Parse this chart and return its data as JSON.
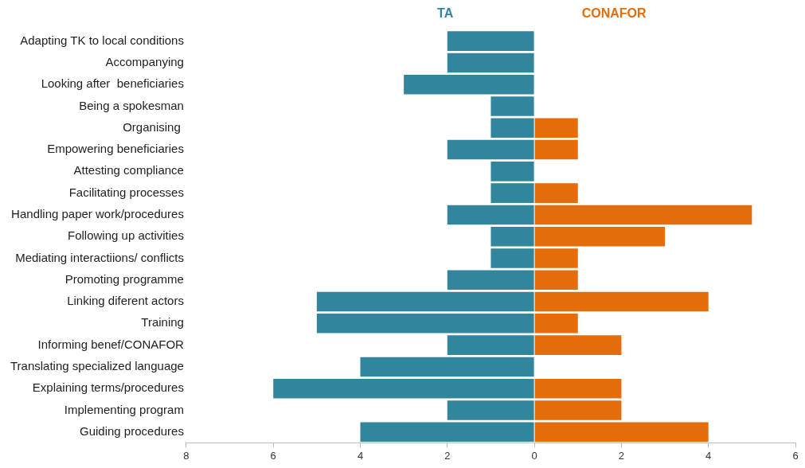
{
  "chart_data": {
    "type": "bar",
    "orientation": "horizontal",
    "stacked": true,
    "grid": false,
    "categories": [
      "Adapting TK to local conditions",
      "Accompanying",
      "Looking after  beneficiaries",
      "Being a spokesman",
      "Organising ",
      "Empowering beneficiaries",
      "Attesting compliance",
      "Facilitating processes",
      "Handling paper work/procedures",
      "Following up activities",
      "Mediating interactiions/ conflicts",
      "Promoting programme",
      "Linking diferent actors",
      "Training",
      "Informing benef/CONAFOR",
      "Translating specialized language",
      "Explaining terms/procedures",
      "Implementing program",
      "Guiding procedures"
    ],
    "series": [
      {
        "name": "TA",
        "color": "#31859c",
        "values": [
          -2,
          -2,
          -3,
          -1,
          -1,
          -2,
          -1,
          -1,
          -2,
          -1,
          -1,
          -2,
          -5,
          -5,
          -2,
          -4,
          -6,
          -2,
          -4
        ]
      },
      {
        "name": "CONAFOR",
        "color": "#e46c0a",
        "values": [
          0,
          0,
          0,
          0,
          1,
          1,
          0,
          1,
          5,
          3,
          1,
          1,
          4,
          1,
          2,
          0,
          2,
          2,
          4
        ]
      }
    ],
    "xlim": [
      -8,
      6
    ],
    "xticks": [
      {
        "value": -8,
        "label": "8"
      },
      {
        "value": -6,
        "label": "6"
      },
      {
        "value": -4,
        "label": "4"
      },
      {
        "value": -2,
        "label": "2"
      },
      0,
      2,
      4,
      6
    ]
  }
}
